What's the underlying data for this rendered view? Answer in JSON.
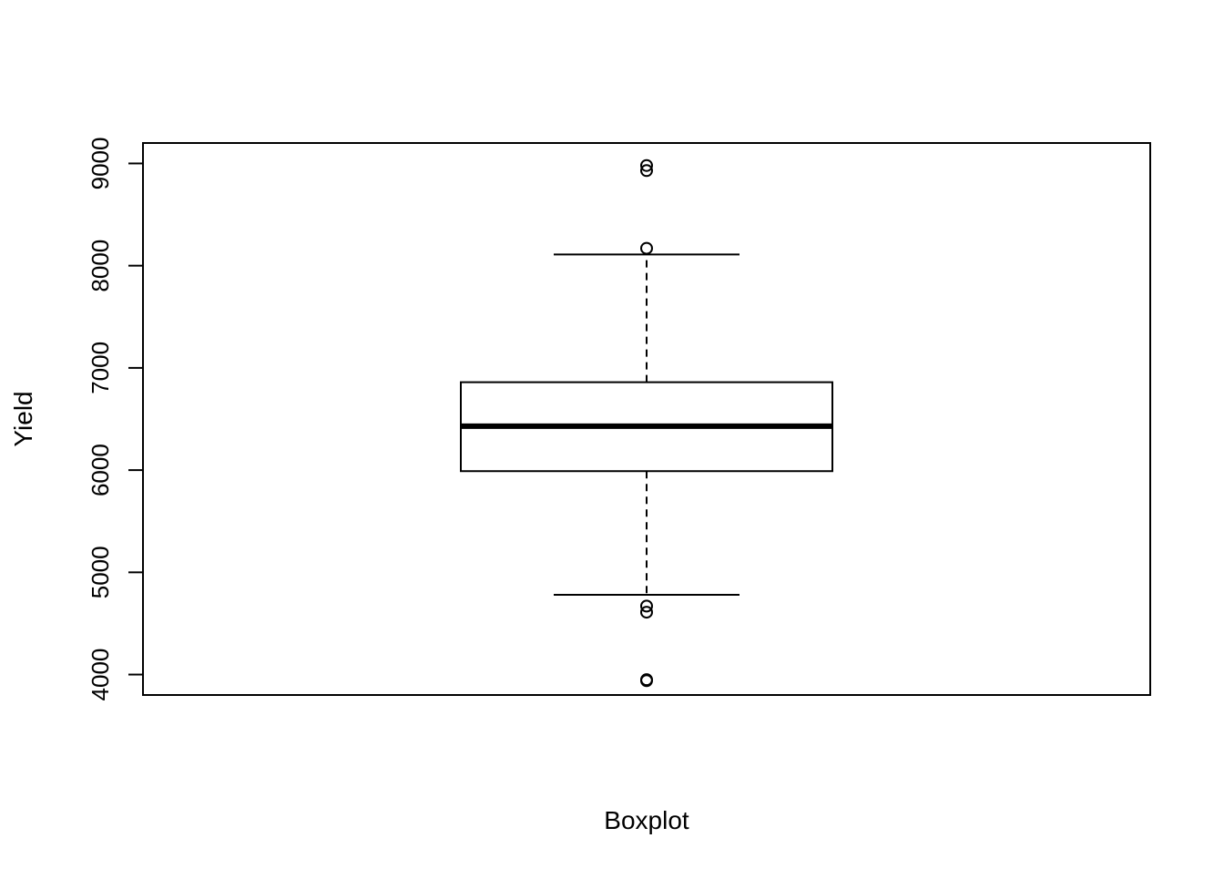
{
  "chart_data": {
    "type": "boxplot",
    "xlabel": "Boxplot",
    "ylabel": "Yield",
    "ylim": [
      3800,
      9200
    ],
    "y_ticks": [
      "4000",
      "5000",
      "6000",
      "7000",
      "8000",
      "9000"
    ],
    "grid": false,
    "legend": "none",
    "box": {
      "whisker_low": 4780,
      "q1": 5990,
      "median": 6430,
      "q3": 6860,
      "whisker_high": 8110,
      "outliers": [
        8980,
        8930,
        8170,
        4670,
        4610,
        3950,
        3940
      ]
    }
  }
}
